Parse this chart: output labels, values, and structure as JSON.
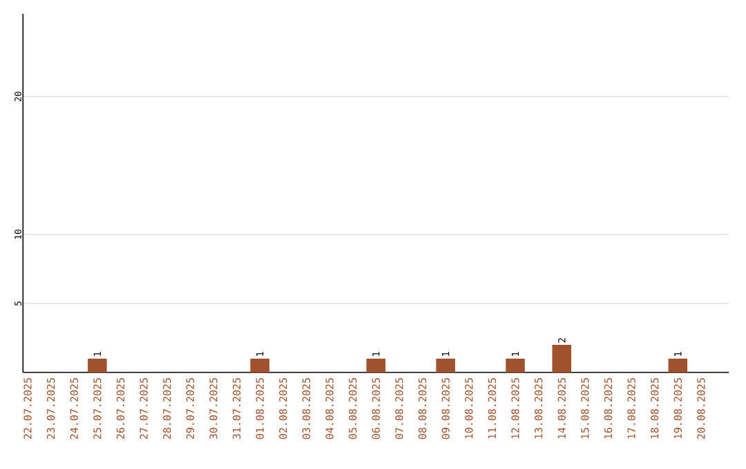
{
  "chart_data": {
    "type": "bar",
    "categories": [
      "22.07.2025",
      "23.07.2025",
      "24.07.2025",
      "25.07.2025",
      "26.07.2025",
      "27.07.2025",
      "28.07.2025",
      "29.07.2025",
      "30.07.2025",
      "31.07.2025",
      "01.08.2025",
      "02.08.2025",
      "03.08.2025",
      "04.08.2025",
      "05.08.2025",
      "06.08.2025",
      "07.08.2025",
      "08.08.2025",
      "09.08.2025",
      "10.08.2025",
      "11.08.2025",
      "12.08.2025",
      "13.08.2025",
      "14.08.2025",
      "15.08.2025",
      "16.08.2025",
      "17.08.2025",
      "18.08.2025",
      "19.08.2025",
      "20.08.2025"
    ],
    "values": [
      0,
      0,
      0,
      1,
      0,
      0,
      0,
      0,
      0,
      0,
      1,
      0,
      0,
      0,
      0,
      1,
      0,
      0,
      1,
      0,
      0,
      1,
      0,
      2,
      0,
      0,
      0,
      0,
      1,
      0
    ],
    "value_labels": [
      null,
      null,
      null,
      "1",
      null,
      null,
      null,
      null,
      null,
      null,
      "1",
      null,
      null,
      null,
      null,
      "1",
      null,
      null,
      "1",
      null,
      null,
      "1",
      null,
      "2",
      null,
      null,
      null,
      null,
      "1",
      null
    ],
    "color": "#a0522d",
    "ylim": [
      0,
      26
    ],
    "yticks": [
      5,
      10,
      20
    ],
    "grid": "y"
  }
}
